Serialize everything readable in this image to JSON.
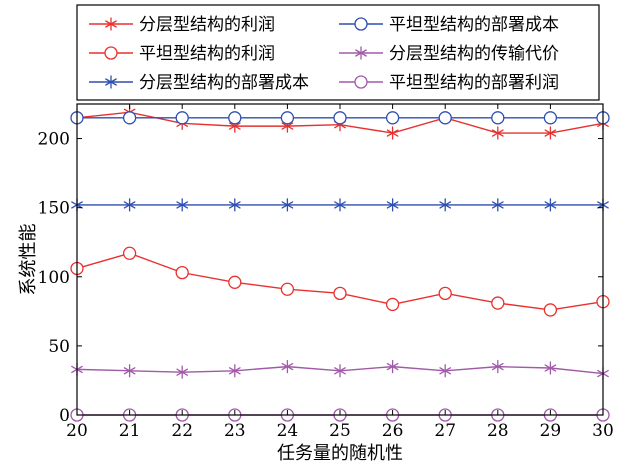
{
  "chart_data": {
    "type": "line",
    "title": "",
    "xlabel": "任务量的随机性",
    "ylabel": "系统性能",
    "xlim": [
      20,
      30
    ],
    "ylim": [
      0,
      225
    ],
    "x": [
      20,
      21,
      22,
      23,
      24,
      25,
      26,
      27,
      28,
      29,
      30
    ],
    "xticks": [
      "20",
      "21",
      "22",
      "23",
      "24",
      "25",
      "26",
      "27",
      "28",
      "29",
      "30"
    ],
    "yticks": [
      0,
      50,
      100,
      150,
      200
    ],
    "ytick_labels": [
      "0",
      "50",
      "100",
      "150",
      "200"
    ],
    "grid": false,
    "legend_position": "top",
    "series": [
      {
        "name": "分层型结构的利润",
        "color": "#e8312f",
        "marker": "asterisk",
        "values": [
          215,
          219,
          211,
          209,
          209,
          210,
          204,
          215,
          204,
          204,
          211
        ]
      },
      {
        "name": "平坦型结构的利润",
        "color": "#e8312f",
        "marker": "circle",
        "values": [
          106,
          117,
          103,
          96,
          91,
          88,
          80,
          88,
          81,
          76,
          82
        ]
      },
      {
        "name": "分层型结构的部署成本",
        "color": "#2f4fb0",
        "marker": "asterisk",
        "values": [
          152,
          152,
          152,
          152,
          152,
          152,
          152,
          152,
          152,
          152,
          152
        ]
      },
      {
        "name": "平坦型结构的部署成本",
        "color": "#2f4fb0",
        "marker": "circle",
        "values": [
          215,
          215,
          215,
          215,
          215,
          215,
          215,
          215,
          215,
          215,
          215
        ]
      },
      {
        "name": "分层型结构的传输代价",
        "color": "#a05aa8",
        "marker": "asterisk",
        "values": [
          33,
          32,
          31,
          32,
          35,
          32,
          35,
          32,
          35,
          34,
          30
        ]
      },
      {
        "name": "平坦型结构的部署利润",
        "color": "#a05aa8",
        "marker": "circle",
        "values": [
          0,
          0,
          0,
          0,
          0,
          0,
          0,
          0,
          0,
          0,
          0
        ]
      }
    ]
  }
}
